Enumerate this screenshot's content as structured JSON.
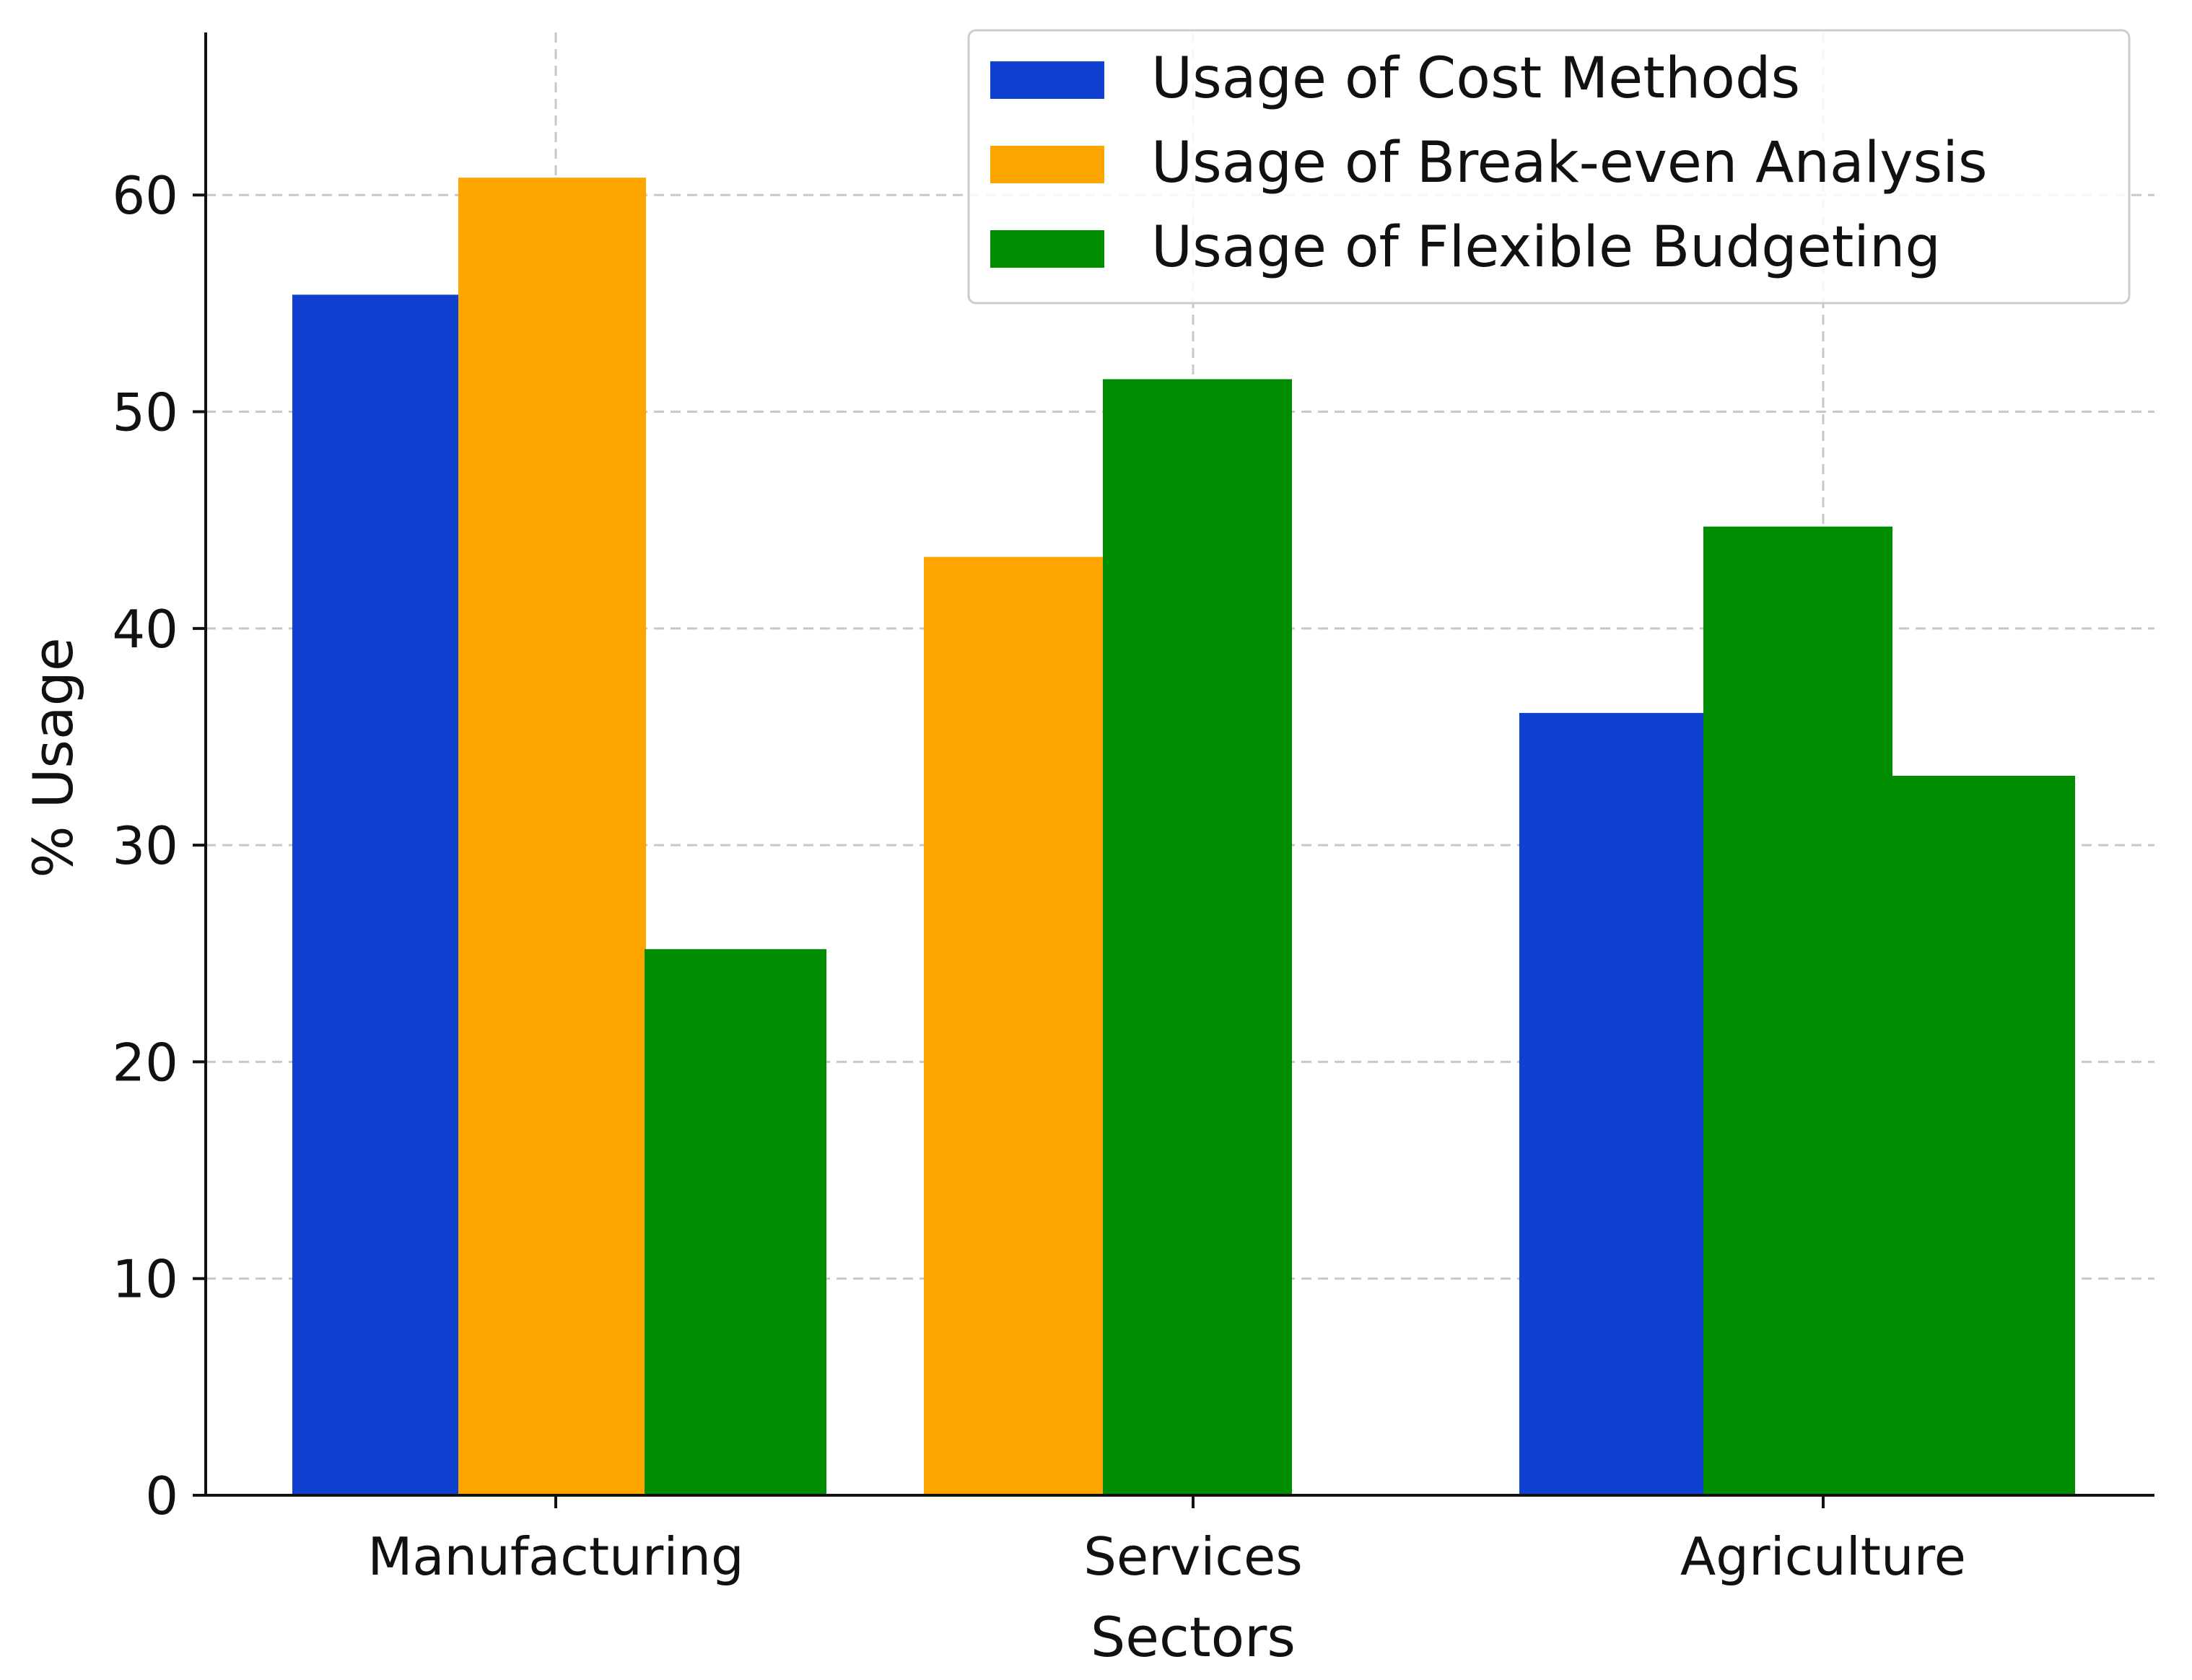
{
  "chart_data": {
    "type": "bar",
    "title": "",
    "xlabel": "Sectors",
    "ylabel": "% Usage",
    "categories": [
      "Manufacturing",
      "Services",
      "Agriculture"
    ],
    "ylim": [
      0,
      67.5
    ],
    "yticks": [
      0,
      10,
      20,
      30,
      40,
      50,
      60
    ],
    "grid": true,
    "legend_position": "top-right",
    "series": [
      {
        "name": "Usage of Cost Methods",
        "color": "#1040d0",
        "values": [
          55.4,
          null,
          36.1
        ]
      },
      {
        "name": "Usage of Break-even Analysis",
        "color": "#ffa500",
        "values": [
          60.8,
          43.3,
          null
        ]
      },
      {
        "name": "Usage of Flexible Budgeting",
        "color": "#008c00",
        "values": [
          25.2,
          51.5,
          33.2
        ]
      }
    ],
    "extra_bars": [
      {
        "category": "Services",
        "color": "#ffa500",
        "value": 43.3
      },
      {
        "category": "Agriculture",
        "color": "#008c00",
        "value": 44.7
      }
    ]
  }
}
